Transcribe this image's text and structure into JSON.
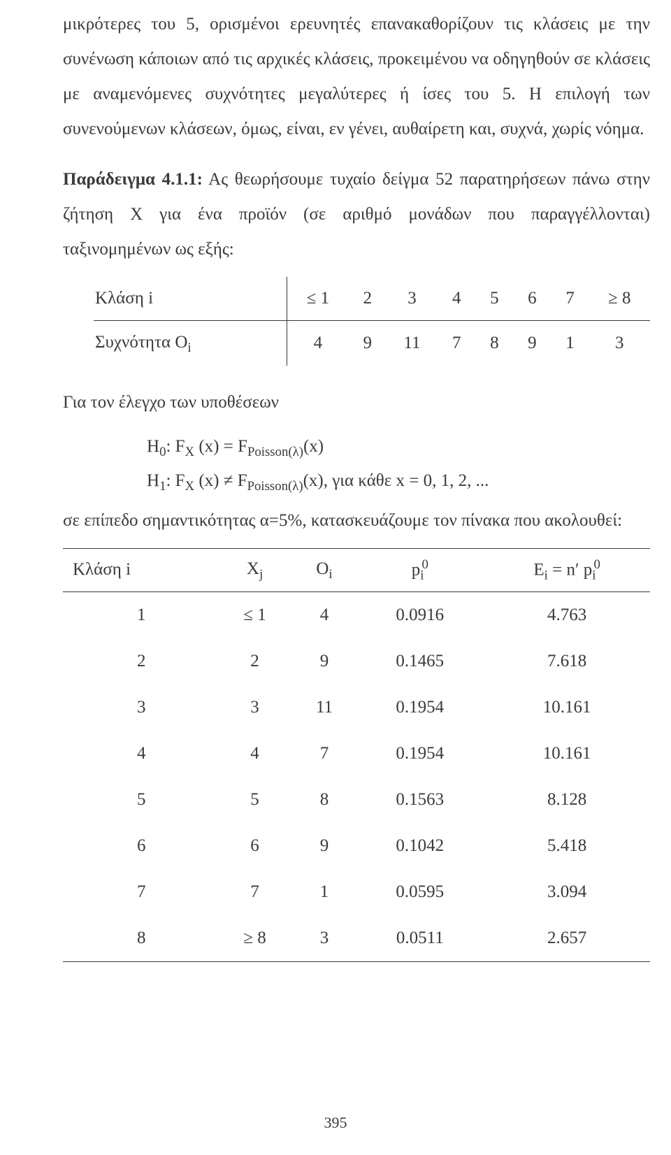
{
  "para1": "μικρότερες του 5, ορισμένοι ερευνητές επανακαθορίζουν τις κλάσεις με την συνένωση κάποιων από τις αρχικές κλάσεις, προκειμένου να οδηγηθούν σε κλάσεις με αναμενόμενες συχνότητες μεγαλύτερες ή ίσες του 5. Η επιλογή των συνενούμενων κλάσεων, όμως, είναι, εν γένει, αυθαίρετη και, συχνά, χωρίς νόημα.",
  "example": {
    "label": "Παράδειγμα 4.1.1:",
    "text": " Ας θεωρήσουμε τυχαίο δείγμα 52 παρατηρήσεων πάνω στην ζήτηση Χ για ένα προϊόν (σε αριθμό μονάδων που παραγγέλλονται) ταξινομημένων ως εξής:"
  },
  "table1": {
    "row_label_class": "Κλάση i",
    "row_label_freq_html": "Συχνότητα O<sub>i</sub>",
    "classes": [
      "≤ 1",
      "2",
      "3",
      "4",
      "5",
      "6",
      "7",
      "≥ 8"
    ],
    "freqs": [
      "4",
      "9",
      "11",
      "7",
      "8",
      "9",
      "1",
      "3"
    ]
  },
  "hyp_intro": "Για τον έλεγχο των υποθέσεων",
  "h0_html": "Η<sub>0</sub>: F<sub>X</sub> (x) = F<sub>Poisson(λ)</sub>(x)",
  "h1_html": "Η<sub>1</sub>: F<sub>X</sub> (x) ≠ F<sub>Poisson(λ)</sub>(x),  για κάθε x = 0, 1, 2, ...",
  "concl": "σε επίπεδο σημαντικότητας α=5%, κατασκευάζουμε τον πίνακα που ακολουθεί:",
  "table2": {
    "headers": {
      "c0": "Κλάση i",
      "c1_html": "X<sub>j</sub>",
      "c2_html": "O<sub>i</sub>",
      "c3_html": "p<sub>i</sub><sup style='margin-left:-3px;'>0</sup>",
      "c4_html": "E<sub>i</sub> = n′ p<sub>i</sub><sup style='margin-left:-3px;'>0</sup>"
    },
    "rows": [
      [
        "1",
        "≤ 1",
        "4",
        "0.0916",
        "4.763"
      ],
      [
        "2",
        "2",
        "9",
        "0.1465",
        "7.618"
      ],
      [
        "3",
        "3",
        "11",
        "0.1954",
        "10.161"
      ],
      [
        "4",
        "4",
        "7",
        "0.1954",
        "10.161"
      ],
      [
        "5",
        "5",
        "8",
        "0.1563",
        "8.128"
      ],
      [
        "6",
        "6",
        "9",
        "0.1042",
        "5.418"
      ],
      [
        "7",
        "7",
        "1",
        "0.0595",
        "3.094"
      ],
      [
        "8",
        "≥ 8",
        "3",
        "0.0511",
        "2.657"
      ]
    ]
  },
  "page_number": "395"
}
